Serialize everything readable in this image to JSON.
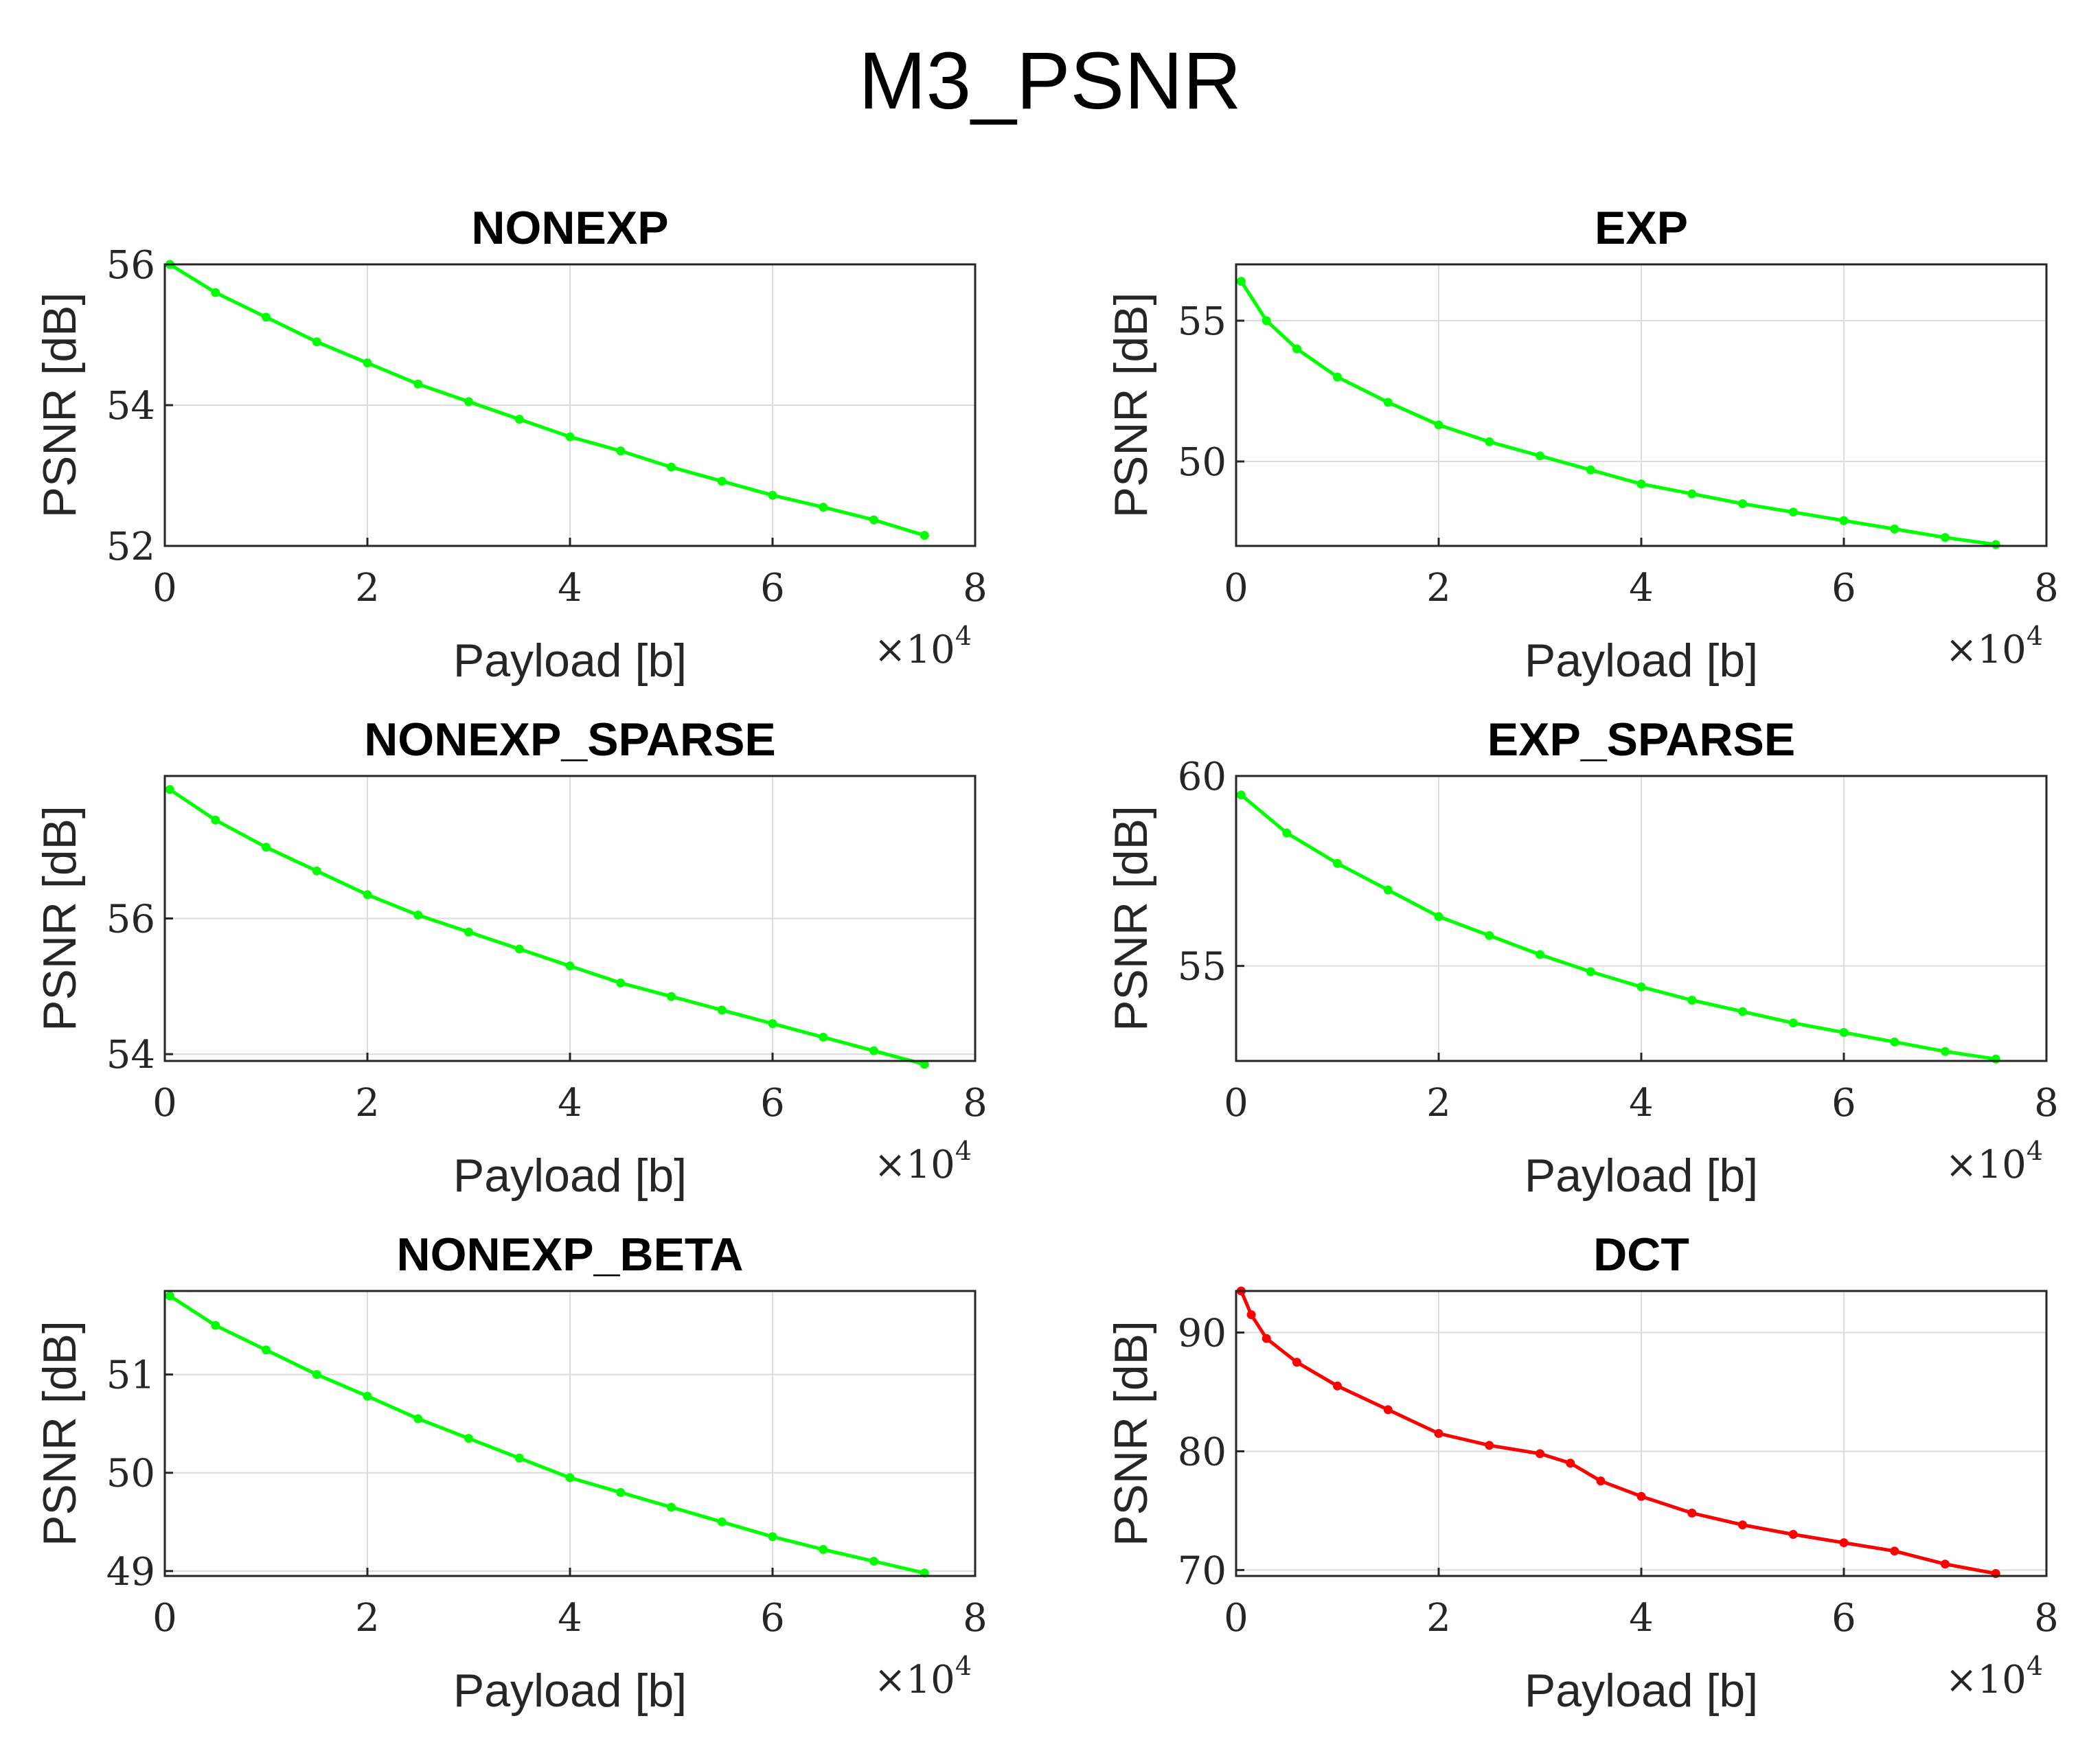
{
  "figure_title": "M3_PSNR",
  "x_multiplier": {
    "base": "×10",
    "exponent": "4"
  },
  "chart_data": [
    {
      "type": "line",
      "title": "NONEXP",
      "xlabel": "Payload [b]",
      "ylabel": "PSNR [dB]",
      "xlim": [
        0,
        8
      ],
      "ylim": [
        52,
        56
      ],
      "xticks": [
        0,
        2,
        4,
        6,
        8
      ],
      "yticks": [
        52,
        54,
        56
      ],
      "color": "#00ff00",
      "grid": true,
      "x": [
        0.05,
        0.5,
        1,
        1.5,
        2,
        2.5,
        3,
        3.5,
        4,
        4.5,
        5,
        5.5,
        6,
        6.5,
        7,
        7.5
      ],
      "y": [
        56.0,
        55.6,
        55.25,
        54.9,
        54.6,
        54.3,
        54.05,
        53.8,
        53.55,
        53.35,
        53.12,
        52.92,
        52.72,
        52.55,
        52.37,
        52.15
      ]
    },
    {
      "type": "line",
      "title": "EXP",
      "xlabel": "Payload [b]",
      "ylabel": "PSNR [dB]",
      "xlim": [
        0,
        8
      ],
      "ylim": [
        47,
        57
      ],
      "xticks": [
        0,
        2,
        4,
        6,
        8
      ],
      "yticks": [
        50,
        55
      ],
      "color": "#00ff00",
      "grid": true,
      "x": [
        0.05,
        0.3,
        0.6,
        1,
        1.5,
        2,
        2.5,
        3,
        3.5,
        4,
        4.5,
        5,
        5.5,
        6,
        6.5,
        7,
        7.5
      ],
      "y": [
        56.4,
        55.0,
        54.0,
        53.0,
        52.1,
        51.3,
        50.7,
        50.2,
        49.7,
        49.2,
        48.85,
        48.5,
        48.2,
        47.9,
        47.6,
        47.3,
        47.05
      ]
    },
    {
      "type": "line",
      "title": "NONEXP_SPARSE",
      "xlabel": "Payload [b]",
      "ylabel": "PSNR [dB]",
      "xlim": [
        0,
        8
      ],
      "ylim": [
        53.9,
        58.1
      ],
      "xticks": [
        0,
        2,
        4,
        6,
        8
      ],
      "yticks": [
        54,
        56
      ],
      "color": "#00ff00",
      "grid": true,
      "x": [
        0.05,
        0.5,
        1,
        1.5,
        2,
        2.5,
        3,
        3.5,
        4,
        4.5,
        5,
        5.5,
        6,
        6.5,
        7,
        7.5
      ],
      "y": [
        57.9,
        57.45,
        57.05,
        56.7,
        56.35,
        56.05,
        55.8,
        55.55,
        55.3,
        55.05,
        54.85,
        54.65,
        54.45,
        54.25,
        54.05,
        53.85
      ]
    },
    {
      "type": "line",
      "title": "EXP_SPARSE",
      "xlabel": "Payload [b]",
      "ylabel": "PSNR [dB]",
      "xlim": [
        0,
        8
      ],
      "ylim": [
        52.5,
        60
      ],
      "xticks": [
        0,
        2,
        4,
        6,
        8
      ],
      "yticks": [
        55,
        60
      ],
      "color": "#00ff00",
      "grid": true,
      "x": [
        0.05,
        0.5,
        1,
        1.5,
        2,
        2.5,
        3,
        3.5,
        4,
        4.5,
        5,
        5.5,
        6,
        6.5,
        7,
        7.5
      ],
      "y": [
        59.5,
        58.5,
        57.7,
        57.0,
        56.3,
        55.8,
        55.3,
        54.85,
        54.45,
        54.1,
        53.8,
        53.5,
        53.25,
        53.0,
        52.75,
        52.55
      ]
    },
    {
      "type": "line",
      "title": "NONEXP_BETA",
      "xlabel": "Payload [b]",
      "ylabel": "PSNR [dB]",
      "xlim": [
        0,
        8
      ],
      "ylim": [
        48.95,
        51.85
      ],
      "xticks": [
        0,
        2,
        4,
        6,
        8
      ],
      "yticks": [
        49,
        50,
        51
      ],
      "color": "#00ff00",
      "grid": true,
      "x": [
        0.05,
        0.5,
        1,
        1.5,
        2,
        2.5,
        3,
        3.5,
        4,
        4.5,
        5,
        5.5,
        6,
        6.5,
        7,
        7.5
      ],
      "y": [
        51.8,
        51.5,
        51.25,
        51.0,
        50.78,
        50.55,
        50.35,
        50.15,
        49.95,
        49.8,
        49.65,
        49.5,
        49.35,
        49.22,
        49.1,
        48.98
      ]
    },
    {
      "type": "line",
      "title": "DCT",
      "xlabel": "Payload [b]",
      "ylabel": "PSNR [dB]",
      "xlim": [
        0,
        8
      ],
      "ylim": [
        69.5,
        93.5
      ],
      "xticks": [
        0,
        2,
        4,
        6,
        8
      ],
      "yticks": [
        70,
        80,
        90
      ],
      "color": "#ff0000",
      "grid": true,
      "x": [
        0.05,
        0.15,
        0.3,
        0.6,
        1,
        1.5,
        2,
        2.5,
        3,
        3.3,
        3.6,
        4,
        4.5,
        5,
        5.5,
        6,
        6.5,
        7,
        7.5
      ],
      "y": [
        93.5,
        91.5,
        89.5,
        87.5,
        85.5,
        83.5,
        81.5,
        80.5,
        79.8,
        79.0,
        77.5,
        76.2,
        74.8,
        73.8,
        73.0,
        72.3,
        71.6,
        70.5,
        69.7
      ]
    }
  ]
}
